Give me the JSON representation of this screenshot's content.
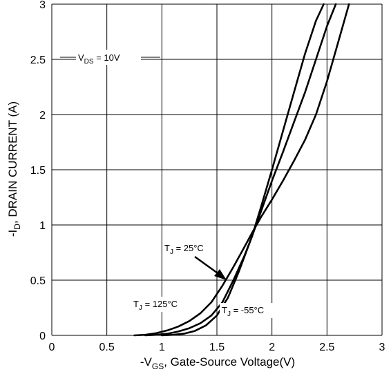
{
  "chart_data": {
    "type": "line",
    "xlabel": {
      "prefix": "-V",
      "sub": "GS",
      "suffix": ", Gate-Source Voltage(V)"
    },
    "ylabel": {
      "prefix": "-I",
      "sub": "D",
      "suffix": ", DRAIN CURRENT (A)"
    },
    "xlim": [
      0,
      3
    ],
    "ylim": [
      0,
      3
    ],
    "x_ticks": [
      "0",
      "0.5",
      "1",
      "1.5",
      "2",
      "2.5",
      "3"
    ],
    "y_ticks": [
      "0",
      "0.5",
      "1",
      "1.5",
      "2",
      "2.5",
      "3"
    ],
    "grid": true,
    "series": [
      {
        "name": {
          "prefix": "T",
          "sub": "J",
          "suffix": " = 125°C"
        },
        "x": [
          0.75,
          0.85,
          0.95,
          1.05,
          1.15,
          1.25,
          1.35,
          1.45,
          1.55,
          1.65,
          1.75,
          1.82,
          1.9,
          2.0,
          2.1,
          2.2,
          2.3,
          2.4,
          2.5,
          2.6,
          2.7
        ],
        "y": [
          0.0,
          0.005,
          0.02,
          0.045,
          0.08,
          0.13,
          0.2,
          0.3,
          0.45,
          0.62,
          0.8,
          0.93,
          1.07,
          1.23,
          1.4,
          1.58,
          1.77,
          2.0,
          2.3,
          2.65,
          3.0
        ]
      },
      {
        "name": {
          "prefix": "T",
          "sub": "J",
          "suffix": " = 25°C"
        },
        "x": [
          0.85,
          0.95,
          1.05,
          1.15,
          1.25,
          1.35,
          1.45,
          1.55,
          1.65,
          1.75,
          1.82,
          1.9,
          2.0,
          2.1,
          2.2,
          2.3,
          2.4,
          2.5,
          2.58
        ],
        "y": [
          0.0,
          0.005,
          0.015,
          0.035,
          0.065,
          0.11,
          0.18,
          0.3,
          0.5,
          0.72,
          0.9,
          1.12,
          1.4,
          1.66,
          1.93,
          2.2,
          2.5,
          2.8,
          3.0
        ]
      },
      {
        "name": {
          "prefix": "T",
          "sub": "J",
          "suffix": " = -55°C"
        },
        "x": [
          1.0,
          1.1,
          1.2,
          1.3,
          1.4,
          1.5,
          1.6,
          1.7,
          1.82,
          1.9,
          2.0,
          2.1,
          2.2,
          2.3,
          2.4,
          2.47
        ],
        "y": [
          0.0,
          0.005,
          0.015,
          0.04,
          0.09,
          0.18,
          0.34,
          0.58,
          0.9,
          1.16,
          1.5,
          1.85,
          2.2,
          2.55,
          2.85,
          3.0
        ]
      }
    ],
    "annotations": [
      {
        "prefix": "V",
        "sub": "DS",
        "suffix": " = 10V"
      }
    ]
  }
}
